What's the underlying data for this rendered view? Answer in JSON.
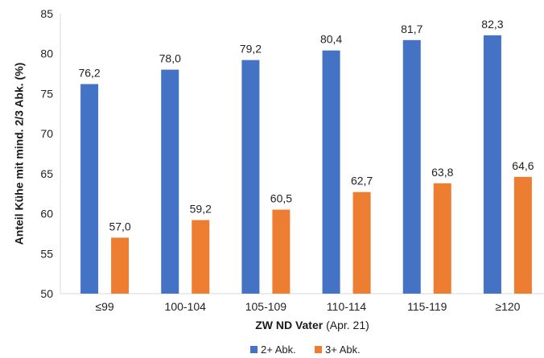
{
  "chart_data": {
    "type": "bar",
    "categories": [
      "≤99",
      "100-104",
      "105-109",
      "110-114",
      "115-119",
      "≥120"
    ],
    "series": [
      {
        "name": "2+ Abk.",
        "color": "#4472C4",
        "values": [
          76.2,
          78.0,
          79.2,
          80.4,
          81.7,
          82.3
        ],
        "labels": [
          "76,2",
          "78,0",
          "79,2",
          "80,4",
          "81,7",
          "82,3"
        ]
      },
      {
        "name": "3+ Abk.",
        "color": "#ED7D31",
        "values": [
          57.0,
          59.2,
          60.5,
          62.7,
          63.8,
          64.6
        ],
        "labels": [
          "57,0",
          "59,2",
          "60,5",
          "62,7",
          "63,8",
          "64,6"
        ]
      }
    ],
    "xlabel_bold": "ZW ND Vater",
    "xlabel_suffix": " (Apr. 21)",
    "ylabel": "Anteil Kühe mit mind. 2/3 Abk. (%)",
    "ylim": [
      50,
      85
    ],
    "yticks": [
      50,
      55,
      60,
      65,
      70,
      75,
      80,
      85
    ],
    "grid": false,
    "legend_position": "bottom"
  }
}
